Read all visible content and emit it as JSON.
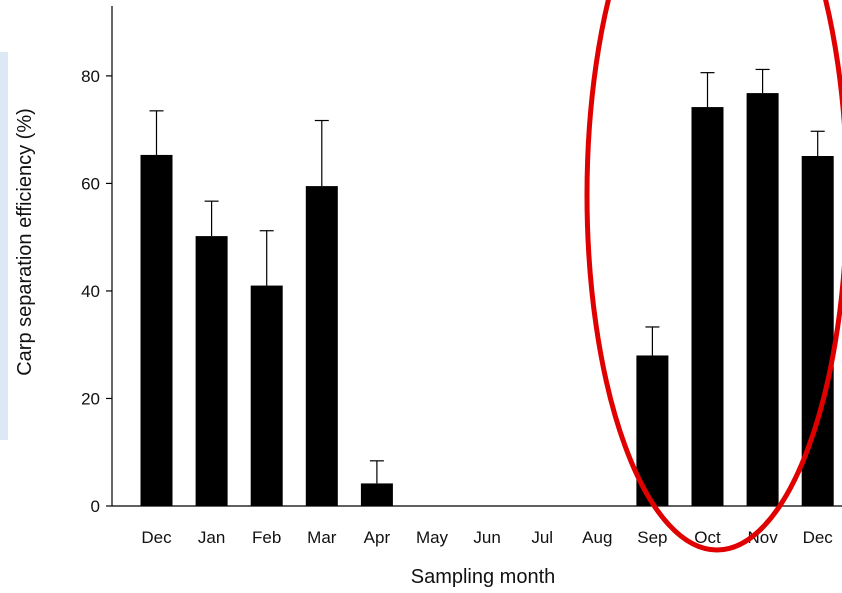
{
  "chart_data": {
    "type": "bar",
    "xlabel": "Sampling month",
    "ylabel": "Carp separation efficiency (%)",
    "ylim": [
      0,
      93
    ],
    "yticks": [
      0,
      20,
      40,
      60,
      80
    ],
    "categories": [
      "Dec",
      "Jan",
      "Feb",
      "Mar",
      "Apr",
      "May",
      "Jun",
      "Jul",
      "Aug",
      "Sep",
      "Oct",
      "Nov",
      "Dec"
    ],
    "values": [
      65.3,
      50.2,
      41.0,
      59.5,
      4.2,
      0,
      0,
      0,
      0,
      28.0,
      74.2,
      76.8,
      65.1
    ],
    "error_upper": [
      73.5,
      56.7,
      51.2,
      71.7,
      8.4,
      null,
      null,
      null,
      null,
      33.3,
      80.6,
      81.2,
      69.7
    ],
    "bar_color": "#000000",
    "grid": false,
    "annotation": {
      "shape": "ellipse",
      "color": "#e00000",
      "highlights": [
        "Sep",
        "Oct",
        "Nov",
        "Dec"
      ]
    }
  }
}
